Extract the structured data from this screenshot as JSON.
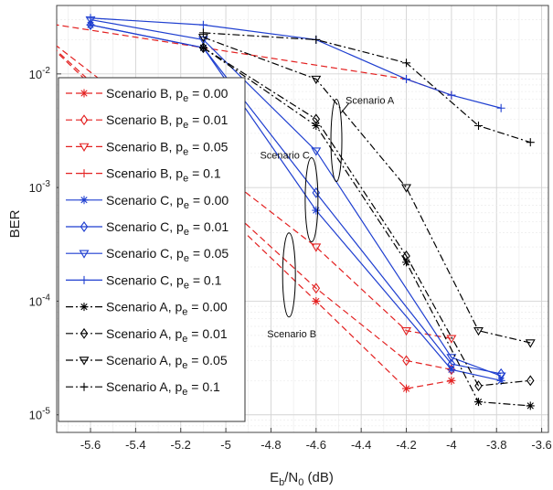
{
  "chart_data": {
    "type": "line",
    "xlabel_main": "E",
    "xlabel_sub": "b",
    "xlabel_mid": "/N",
    "xlabel_sub2": "0",
    "xlabel_tail": " (dB)",
    "ylabel": "BER",
    "y_scale": "log",
    "xlim": [
      -5.75,
      -3.57
    ],
    "ylim": [
      7e-06,
      0.04
    ],
    "x_ticks": [
      -5.6,
      -5.4,
      -5.2,
      -5.0,
      -4.8,
      -4.6,
      -4.4,
      -4.2,
      -4.0,
      -3.8,
      -3.6
    ],
    "x_tick_labels": [
      "-5.6",
      "-5.4",
      "-5.2",
      "-5",
      "-4.8",
      "-4.6",
      "-4.4",
      "-4.2",
      "-4",
      "-3.8",
      "-3.6"
    ],
    "y_ticks": [
      1e-05,
      0.0001,
      0.001,
      0.01
    ],
    "y_tick_labels": [
      {
        "base": "10",
        "exp": "-5"
      },
      {
        "base": "10",
        "exp": "-4"
      },
      {
        "base": "10",
        "exp": "-3"
      },
      {
        "base": "10",
        "exp": "-2"
      }
    ],
    "grid": true,
    "legend_position": "left",
    "colors": {
      "scenario_b": "#e32020",
      "scenario_c": "#1f3fd0",
      "scenario_a": "#000000"
    },
    "series": [
      {
        "name_prefix": "Scenario B, p",
        "name_sub": "e",
        "name_value": " = 0.00",
        "color": "#e32020",
        "dash": "dashed",
        "marker": "asterisk",
        "x": [
          -5.9,
          -4.6,
          -4.2,
          -4.0
        ],
        "y": [
          0.03,
          0.0001,
          1.7e-05,
          2e-05
        ]
      },
      {
        "name_prefix": "Scenario B, p",
        "name_sub": "e",
        "name_value": " = 0.01",
        "color": "#e32020",
        "dash": "dashed",
        "marker": "diamond",
        "x": [
          -5.9,
          -4.6,
          -4.2,
          -4.0
        ],
        "y": [
          0.03,
          0.00013,
          3e-05,
          2.5e-05
        ]
      },
      {
        "name_prefix": "Scenario B, p",
        "name_sub": "e",
        "name_value": " = 0.05",
        "color": "#e32020",
        "dash": "dashed",
        "marker": "triangle-down",
        "x": [
          -5.9,
          -4.6,
          -4.2,
          -4.0
        ],
        "y": [
          0.03,
          0.0003,
          5.5e-05,
          4.7e-05
        ]
      },
      {
        "name_prefix": "Scenario B, p",
        "name_sub": "e",
        "name_value": " = 0.1",
        "color": "#e32020",
        "dash": "dashed",
        "marker": "plus",
        "x": [
          -5.9,
          -4.2,
          -4.0
        ],
        "y": [
          0.03,
          0.009,
          0.0065
        ]
      },
      {
        "name_prefix": "Scenario C, p",
        "name_sub": "e",
        "name_value": " = 0.00",
        "color": "#1f3fd0",
        "dash": "solid",
        "marker": "asterisk",
        "x": [
          -5.6,
          -5.1,
          -4.6,
          -4.0,
          -3.78
        ],
        "y": [
          0.027,
          0.017,
          0.00063,
          2.5e-05,
          2e-05
        ]
      },
      {
        "name_prefix": "Scenario C, p",
        "name_sub": "e",
        "name_value": " = 0.01",
        "color": "#1f3fd0",
        "dash": "solid",
        "marker": "diamond",
        "x": [
          -5.6,
          -5.1,
          -4.6,
          -4.0,
          -3.78
        ],
        "y": [
          0.027,
          0.017,
          0.0009,
          2.8e-05,
          2.3e-05
        ]
      },
      {
        "name_prefix": "Scenario C, p",
        "name_sub": "e",
        "name_value": " = 0.05",
        "color": "#1f3fd0",
        "dash": "solid",
        "marker": "triangle-down",
        "x": [
          -5.6,
          -5.1,
          -4.6,
          -4.0,
          -3.78
        ],
        "y": [
          0.03,
          0.02,
          0.0021,
          3.2e-05,
          2.2e-05
        ]
      },
      {
        "name_prefix": "Scenario C, p",
        "name_sub": "e",
        "name_value": " = 0.1",
        "color": "#1f3fd0",
        "dash": "solid",
        "marker": "plus",
        "x": [
          -5.6,
          -5.1,
          -4.6,
          -4.2,
          -4.0,
          -3.78
        ],
        "y": [
          0.031,
          0.027,
          0.02,
          0.009,
          0.0065,
          0.005
        ]
      },
      {
        "name_prefix": "Scenario A, p",
        "name_sub": "e",
        "name_value": " = 0.00",
        "color": "#000000",
        "dash": "dashdot",
        "marker": "asterisk",
        "x": [
          -5.1,
          -4.6,
          -4.2,
          -3.88,
          -3.65
        ],
        "y": [
          0.017,
          0.0035,
          0.00022,
          1.3e-05,
          1.2e-05
        ]
      },
      {
        "name_prefix": "Scenario A, p",
        "name_sub": "e",
        "name_value": " = 0.01",
        "color": "#000000",
        "dash": "dashdot",
        "marker": "diamond",
        "x": [
          -5.1,
          -4.6,
          -4.2,
          -3.88,
          -3.65
        ],
        "y": [
          0.017,
          0.004,
          0.00025,
          1.8e-05,
          2e-05
        ]
      },
      {
        "name_prefix": "Scenario A, p",
        "name_sub": "e",
        "name_value": " = 0.05",
        "color": "#000000",
        "dash": "dashdot",
        "marker": "triangle-down",
        "x": [
          -5.1,
          -4.6,
          -4.2,
          -3.88,
          -3.65
        ],
        "y": [
          0.021,
          0.009,
          0.001,
          5.5e-05,
          4.3e-05
        ]
      },
      {
        "name_prefix": "Scenario A, p",
        "name_sub": "e",
        "name_value": " = 0.1",
        "color": "#000000",
        "dash": "dashdot",
        "marker": "plus",
        "x": [
          -5.1,
          -4.6,
          -4.2,
          -3.88,
          -3.65
        ],
        "y": [
          0.023,
          0.02,
          0.0125,
          0.0035,
          0.0025
        ]
      }
    ],
    "annotations": [
      {
        "text": "Scenario A",
        "anchor_x": -4.51,
        "anchor_y": 0.0026
      },
      {
        "text": "Scenario C",
        "anchor_x": -4.62,
        "anchor_y": 0.00078
      },
      {
        "text": "Scenario B",
        "anchor_x": -4.72,
        "anchor_y": 0.00017
      }
    ]
  }
}
